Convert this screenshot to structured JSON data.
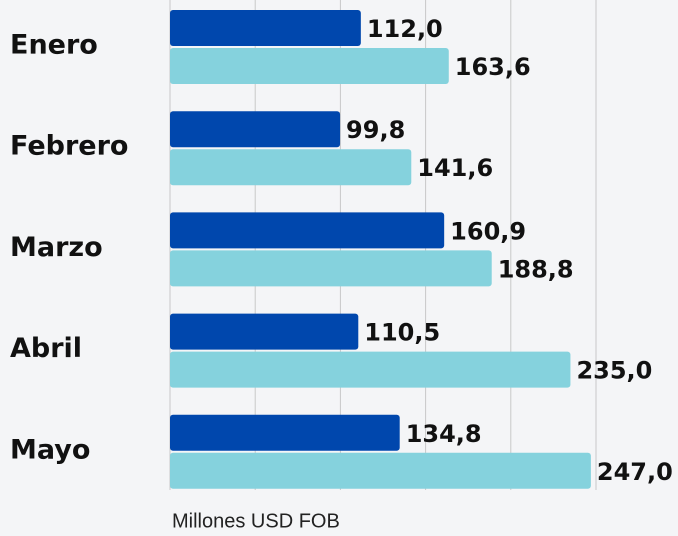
{
  "chart_data": {
    "type": "barh",
    "categories": [
      "Enero",
      "Febrero",
      "Marzo",
      "Abril",
      "Mayo"
    ],
    "series": [
      {
        "color": "#0047ad",
        "values": [
          112.0,
          99.8,
          160.9,
          110.5,
          134.8
        ],
        "value_labels": [
          "112,0",
          "99,8",
          "160,9",
          "110,5",
          "134,8"
        ]
      },
      {
        "color": "#85d2dd",
        "values": [
          163.6,
          141.6,
          188.8,
          235.0,
          247.0
        ],
        "value_labels": [
          "163,6",
          "141,6",
          "188,8",
          "235,0",
          "247,0"
        ]
      }
    ],
    "xlabel": "Millones USD FOB",
    "xlim": [
      0,
      250
    ],
    "xticks": [
      0,
      50,
      100,
      150,
      200,
      250
    ],
    "grid": true
  }
}
